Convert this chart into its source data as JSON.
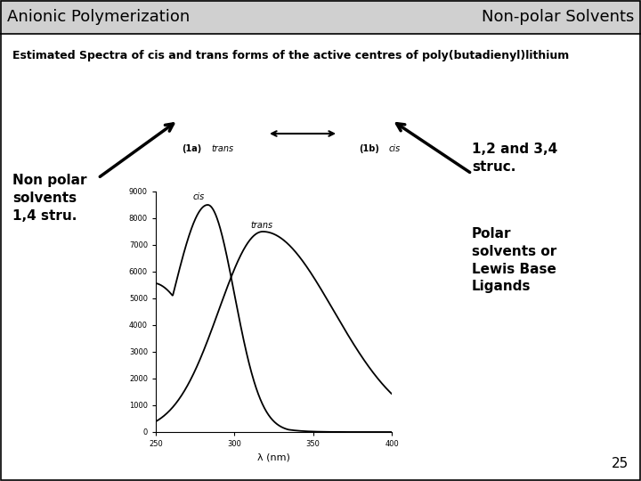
{
  "title_left": "Anionic Polymerization",
  "title_right": "Non-polar Solvents",
  "subtitle": "Estimated Spectra of cis and trans forms of the active centres of poly(butadienyl)lithium",
  "page_number": "25",
  "annotation_left": "Non polar\nsolvents\n1,4 stru.",
  "annotation_right_top": "1,2 and 3,4\nstruc.",
  "annotation_right_bottom": "Polar\nsolvents or\nLewis Base\nLigands",
  "graph": {
    "xlim": [
      250,
      400
    ],
    "ylim": [
      0,
      9000
    ],
    "xlabel": "λ (nm)",
    "yticks": [
      0,
      1000,
      2000,
      3000,
      4000,
      5000,
      6000,
      7000,
      8000,
      9000
    ],
    "xticks": [
      250,
      300,
      350,
      400
    ],
    "cis_label": "cis",
    "trans_label": "trans",
    "curve_color": "#000000"
  },
  "bg_color": "#ffffff",
  "border_color": "#000000",
  "header_line_color": "#000000",
  "text_color": "#000000",
  "header_bg": "#d0d0d0"
}
